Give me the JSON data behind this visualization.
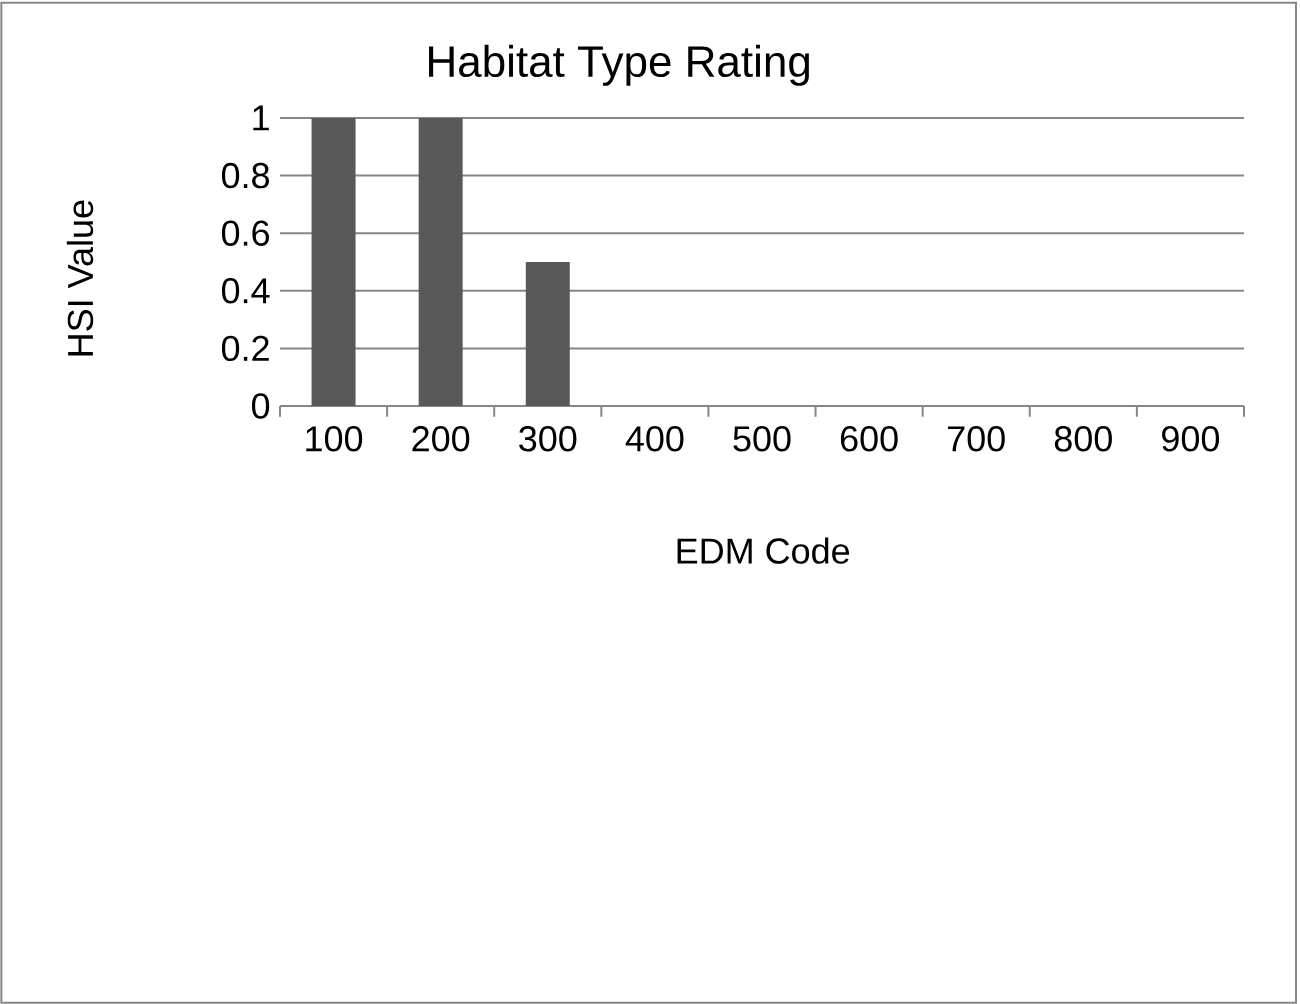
{
  "chart_data": {
    "type": "bar",
    "title": "Habitat Type Rating",
    "xlabel": "EDM Code",
    "ylabel": "HSI Value",
    "categories": [
      "100",
      "200",
      "300",
      "400",
      "500",
      "600",
      "700",
      "800",
      "900"
    ],
    "values": [
      1,
      1,
      0.5,
      0,
      0,
      0,
      0,
      0,
      0
    ],
    "color": "#595959",
    "ylim": [
      0,
      1
    ],
    "yticks": [
      0,
      0.2,
      0.4,
      0.6,
      0.8,
      1
    ],
    "grid": "y"
  }
}
